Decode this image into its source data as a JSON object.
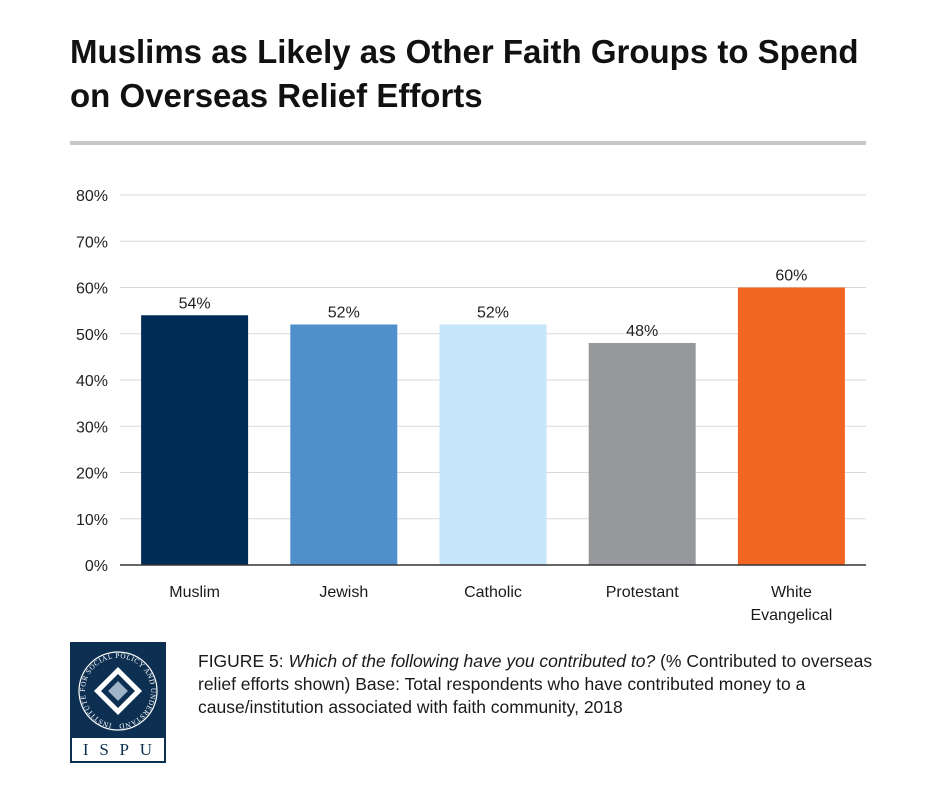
{
  "title": "Muslims as Likely as Other Faith Groups to Spend on Overseas Relief Efforts",
  "chart_data": {
    "type": "bar",
    "categories": [
      "Muslim",
      "Jewish",
      "Catholic",
      "Protestant",
      "White Evangelical"
    ],
    "category_lines": [
      [
        "Muslim"
      ],
      [
        "Jewish"
      ],
      [
        "Catholic"
      ],
      [
        "Protestant"
      ],
      [
        "White",
        "Evangelical"
      ]
    ],
    "values": [
      54,
      52,
      52,
      48,
      60
    ],
    "data_labels": [
      "54%",
      "52%",
      "52%",
      "48%",
      "60%"
    ],
    "colors": [
      "#002d56",
      "#4f8fcc",
      "#c6e6fa",
      "#96989b",
      "#f26522"
    ],
    "ylim": [
      0,
      80
    ],
    "yticks": [
      0,
      10,
      20,
      30,
      40,
      50,
      60,
      70,
      80
    ],
    "ytick_labels": [
      "0%",
      "10%",
      "20%",
      "30%",
      "40%",
      "50%",
      "60%",
      "70%",
      "80%"
    ],
    "grid": true,
    "gridline_color": "#d9d9d9",
    "axis_color": "#333333",
    "xlabel": "",
    "ylabel": ""
  },
  "logo": {
    "circle_text": "INSTITUTE FOR SOCIAL POLICY AND UNDERSTANDING",
    "letters": [
      "I",
      "S",
      "P",
      "U"
    ],
    "bg_color": "#0d2f52"
  },
  "caption": {
    "figure_label": "FIGURE 5",
    "separator": ": ",
    "question": "Which of the following have you contributed to?",
    "details": " (% Contributed to overseas relief efforts shown) Base: Total respondents who have contributed money to a cause/institution associated with faith community, 2018"
  }
}
